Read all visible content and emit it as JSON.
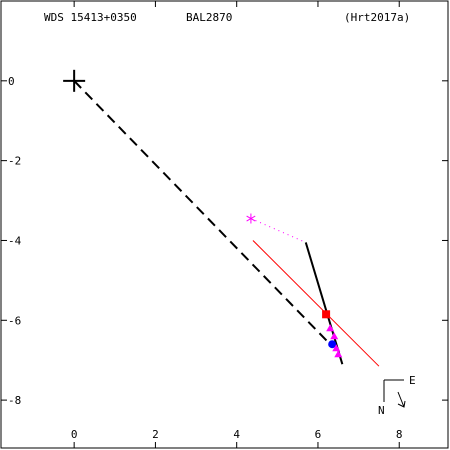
{
  "header": {
    "wds_id": "WDS 15413+0350",
    "discoverer": "BAL2870",
    "reference": "(Hrt2017a)"
  },
  "compass": {
    "east_label": "E",
    "north_label": "N"
  },
  "colors": {
    "axis": "#000000",
    "predicted_path": "#000000",
    "fit_line": "#ff0000",
    "residual": "#ff00ff",
    "observation_magenta": "#ff00ff",
    "observation_red": "#ff0000",
    "observation_blue": "#0000ff"
  },
  "chart_data": {
    "type": "scatter",
    "xlim": [
      -1.8,
      9.2
    ],
    "ylim": [
      -9.2,
      2.0
    ],
    "x_ticks": [
      0,
      2,
      4,
      6,
      8
    ],
    "y_ticks": [
      0,
      -2,
      -4,
      -6,
      -8
    ],
    "x_tick_labels": [
      "0",
      "2",
      "4",
      "6",
      "8"
    ],
    "y_tick_labels": [
      "0",
      "-2",
      "-4",
      "-6",
      "-8"
    ],
    "grid": false,
    "primary_star": [
      0,
      0
    ],
    "primary_to_companion_line": [
      [
        0,
        0
      ],
      [
        6.3,
        -6.6
      ]
    ],
    "predicted_path": [
      [
        5.7,
        -4.05
      ],
      [
        6.6,
        -7.1
      ]
    ],
    "fit_line": [
      [
        4.4,
        -4.0
      ],
      [
        7.5,
        -7.15
      ]
    ],
    "residual_line": [
      [
        4.35,
        -3.45
      ],
      [
        5.7,
        -4.05
      ]
    ],
    "outlier_point": {
      "x": 4.35,
      "y": -3.45,
      "marker": "asterisk"
    },
    "observations": [
      {
        "x": 6.2,
        "y": -5.85,
        "marker": "square",
        "color": "#ff0000"
      },
      {
        "x": 6.3,
        "y": -6.2,
        "marker": "triangle",
        "color": "#ff00ff"
      },
      {
        "x": 6.4,
        "y": -6.4,
        "marker": "triangle",
        "color": "#ff00ff"
      },
      {
        "x": 6.35,
        "y": -6.6,
        "marker": "circle",
        "color": "#0000ff"
      },
      {
        "x": 6.45,
        "y": -6.7,
        "marker": "triangle",
        "color": "#ff00ff"
      },
      {
        "x": 6.5,
        "y": -6.85,
        "marker": "triangle",
        "color": "#ff00ff"
      }
    ]
  }
}
